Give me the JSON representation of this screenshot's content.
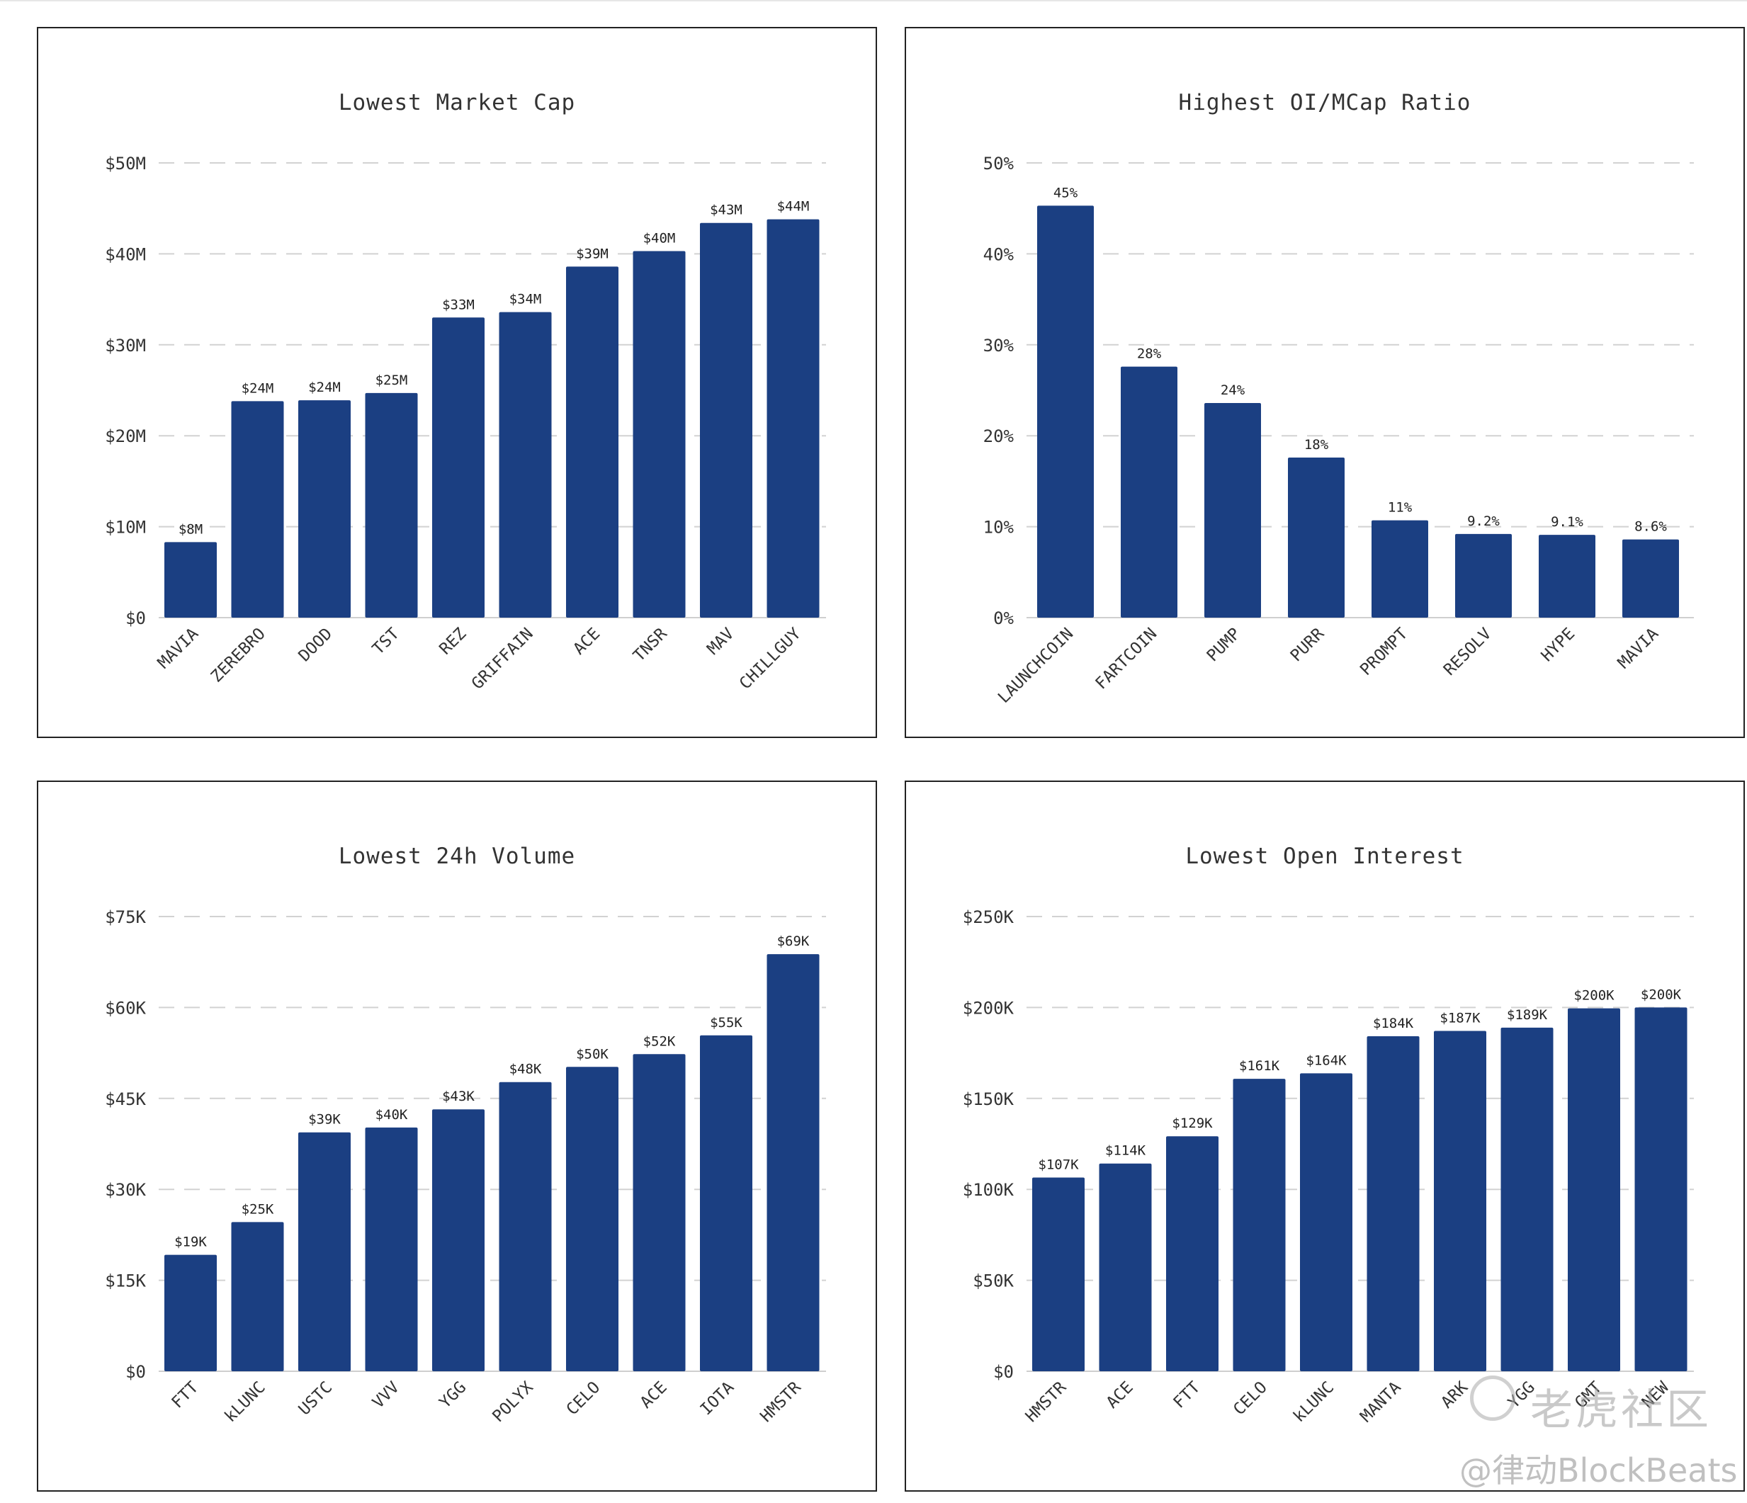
{
  "chart_data": [
    {
      "type": "bar",
      "title": "Lowest Market Cap",
      "categories": [
        "MAVIA",
        "ZEREBRO",
        "DOOD",
        "TST",
        "REZ",
        "GRIFFAIN",
        "ACE",
        "TNSR",
        "MAV",
        "CHILLGUY"
      ],
      "values": [
        8.3,
        23.8,
        23.9,
        24.7,
        33.0,
        33.6,
        38.6,
        40.3,
        43.4,
        43.8
      ],
      "data_labels": [
        "$8M",
        "$24M",
        "$24M",
        "$25M",
        "$33M",
        "$34M",
        "$39M",
        "$40M",
        "$43M",
        "$44M"
      ],
      "yticks": [
        0,
        10,
        20,
        30,
        40,
        50
      ],
      "ytick_labels": [
        "$0",
        "$10M",
        "$20M",
        "$30M",
        "$40M",
        "$50M"
      ],
      "ylim": [
        0,
        50
      ],
      "grid": true,
      "bar_color": "#1b3f82"
    },
    {
      "type": "bar",
      "title": "Highest OI/MCap Ratio",
      "categories": [
        "LAUNCHCOIN",
        "FARTCOIN",
        "PUMP",
        "PURR",
        "PROMPT",
        "RESOLV",
        "HYPE",
        "MAVIA"
      ],
      "values": [
        45.3,
        27.6,
        23.6,
        17.6,
        10.7,
        9.2,
        9.1,
        8.6
      ],
      "data_labels": [
        "45%",
        "28%",
        "24%",
        "18%",
        "11%",
        "9.2%",
        "9.1%",
        "8.6%"
      ],
      "yticks": [
        0,
        10,
        20,
        30,
        40,
        50
      ],
      "ytick_labels": [
        "0%",
        "10%",
        "20%",
        "30%",
        "40%",
        "50%"
      ],
      "ylim": [
        0,
        50
      ],
      "grid": true,
      "bar_color": "#1b3f82"
    },
    {
      "type": "bar",
      "title": "Lowest 24h Volume",
      "categories": [
        "FTT",
        "kLUNC",
        "USTC",
        "VVV",
        "YGG",
        "POLYX",
        "CELO",
        "ACE",
        "IOTA",
        "HMSTR"
      ],
      "values": [
        19.2,
        24.6,
        39.4,
        40.2,
        43.2,
        47.7,
        50.2,
        52.3,
        55.4,
        68.8
      ],
      "data_labels": [
        "$19K",
        "$25K",
        "$39K",
        "$40K",
        "$43K",
        "$48K",
        "$50K",
        "$52K",
        "$55K",
        "$69K"
      ],
      "yticks": [
        0,
        15,
        30,
        45,
        60,
        75
      ],
      "ytick_labels": [
        "$0",
        "$15K",
        "$30K",
        "$45K",
        "$60K",
        "$75K"
      ],
      "ylim": [
        0,
        75
      ],
      "grid": true,
      "bar_color": "#1b3f82"
    },
    {
      "type": "bar",
      "title": "Lowest Open Interest",
      "categories": [
        "HMSTR",
        "ACE",
        "FTT",
        "CELO",
        "kLUNC",
        "MANTA",
        "ARK",
        "YGG",
        "GMT",
        "NEW"
      ],
      "values": [
        106.5,
        114.2,
        129.2,
        160.8,
        163.8,
        184.2,
        187.1,
        188.9,
        199.5,
        200.0
      ],
      "data_labels": [
        "$107K",
        "$114K",
        "$129K",
        "$161K",
        "$164K",
        "$184K",
        "$187K",
        "$189K",
        "$200K",
        "$200K"
      ],
      "yticks": [
        0,
        50,
        100,
        150,
        200,
        250
      ],
      "ytick_labels": [
        "$0",
        "$50K",
        "$100K",
        "$150K",
        "$200K",
        "$250K"
      ],
      "ylim": [
        0,
        250
      ],
      "grid": true,
      "bar_color": "#1b3f82"
    }
  ],
  "watermark": {
    "line1": "老虎社区",
    "line2": "@律动BlockBeats"
  }
}
